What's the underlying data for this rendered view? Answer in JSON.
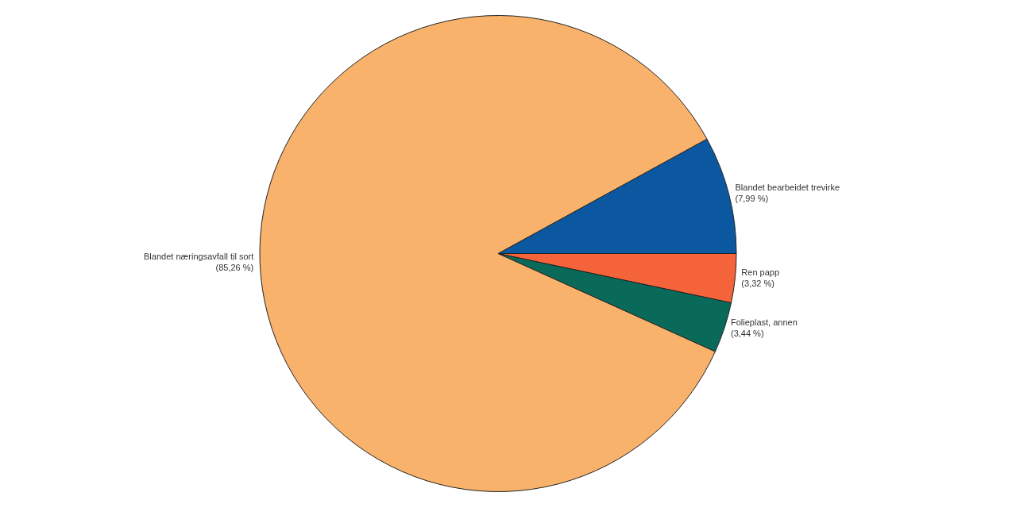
{
  "chart_data": {
    "type": "pie",
    "categories": [
      "Blandet bearbeidet trevirke",
      "Ren papp",
      "Folieplast, annen",
      "Blandet næringsavfall til sort"
    ],
    "values": [
      7.99,
      3.32,
      3.44,
      85.26
    ],
    "value_labels": [
      "(7,99 %)",
      "(3,32 %)",
      "(3,44 %)",
      "(85,26 %)"
    ],
    "colors": [
      "#0b58a0",
      "#f4633a",
      "#0a6a5a",
      "#f9b26b"
    ]
  }
}
